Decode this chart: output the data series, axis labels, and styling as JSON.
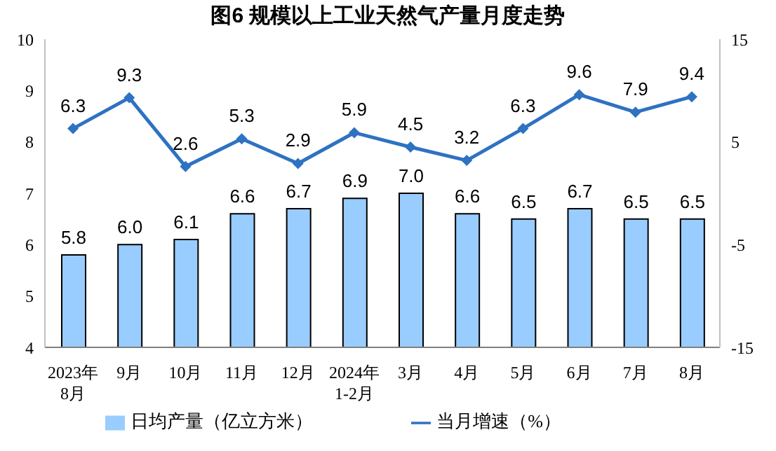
{
  "chart_data": {
    "type": "bar",
    "title": "图6  规模以上工业天然气产量月度走势",
    "categories": [
      "2023年\n8月",
      "9月",
      "10月",
      "11月",
      "12月",
      "2024年\n1-2月",
      "3月",
      "4月",
      "5月",
      "6月",
      "7月",
      "8月"
    ],
    "series": [
      {
        "name": "日均产量（亿立方米）",
        "color": "#99ccff",
        "values": [
          5.8,
          6.0,
          6.1,
          6.6,
          6.7,
          6.9,
          7.0,
          6.6,
          6.5,
          6.7,
          6.5,
          6.5
        ],
        "value_labels": [
          "5.8",
          "6.0",
          "6.1",
          "6.6",
          "6.7",
          "6.9",
          "7.0",
          "6.6",
          "6.5",
          "6.7",
          "6.5",
          "6.5"
        ]
      },
      {
        "name": "当月增速（%）",
        "type": "line",
        "axis": "y2",
        "color": "#2e72c2",
        "values": [
          6.3,
          9.3,
          2.6,
          5.3,
          2.9,
          5.9,
          4.5,
          3.2,
          6.3,
          9.6,
          7.9,
          9.4
        ],
        "value_labels": [
          "6.3",
          "9.3",
          "2.6",
          "5.3",
          "2.9",
          "5.9",
          "4.5",
          "3.2",
          "6.3",
          "9.6",
          "7.9",
          "9.4"
        ]
      }
    ],
    "ylim": [
      4,
      10
    ],
    "yticks": [
      4,
      5,
      6,
      7,
      8,
      9,
      10
    ],
    "y2lim": [
      -15,
      15
    ],
    "y2ticks": [
      -15,
      -5,
      5,
      15
    ],
    "legend": "bottom",
    "marker": "diamond",
    "line_style": "solid"
  }
}
